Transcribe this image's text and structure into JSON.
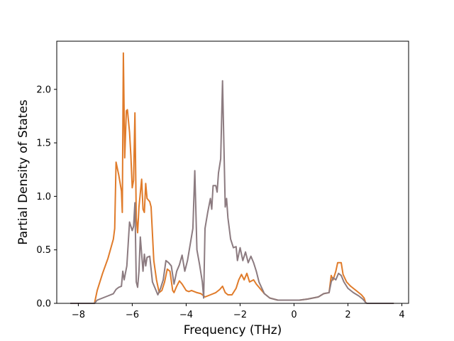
{
  "chart_data": {
    "type": "line",
    "title": "",
    "xlabel": "Frequency (THz)",
    "ylabel": "Partial Density of States",
    "xlim": [
      -8.8,
      4.25
    ],
    "ylim": [
      0,
      2.45
    ],
    "xticks": [
      -8,
      -6,
      -4,
      -2,
      0,
      2,
      4
    ],
    "xtick_labels": [
      "−8",
      "−6",
      "−4",
      "−2",
      "0",
      "2",
      "4"
    ],
    "yticks": [
      0.0,
      0.5,
      1.0,
      1.5,
      2.0
    ],
    "ytick_labels": [
      "0.0",
      "0.5",
      "1.0",
      "1.5",
      "2.0"
    ],
    "grid": false,
    "legend": "none",
    "series": [
      {
        "color": "#e07b2a",
        "points": [
          [
            -8.3,
            0.0
          ],
          [
            -7.4,
            0.0
          ],
          [
            -7.3,
            0.12
          ],
          [
            -7.1,
            0.28
          ],
          [
            -6.9,
            0.42
          ],
          [
            -6.7,
            0.6
          ],
          [
            -6.65,
            0.7
          ],
          [
            -6.6,
            1.32
          ],
          [
            -6.5,
            1.2
          ],
          [
            -6.4,
            1.05
          ],
          [
            -6.37,
            0.85
          ],
          [
            -6.33,
            2.34
          ],
          [
            -6.28,
            1.36
          ],
          [
            -6.22,
            1.8
          ],
          [
            -6.18,
            1.81
          ],
          [
            -6.1,
            1.6
          ],
          [
            -6.05,
            1.38
          ],
          [
            -6.0,
            1.08
          ],
          [
            -5.95,
            1.15
          ],
          [
            -5.9,
            1.78
          ],
          [
            -5.85,
            0.8
          ],
          [
            -5.8,
            0.66
          ],
          [
            -5.75,
            0.9
          ],
          [
            -5.65,
            1.16
          ],
          [
            -5.6,
            0.88
          ],
          [
            -5.55,
            0.85
          ],
          [
            -5.5,
            1.12
          ],
          [
            -5.45,
            0.98
          ],
          [
            -5.35,
            0.95
          ],
          [
            -5.3,
            0.9
          ],
          [
            -5.2,
            0.4
          ],
          [
            -5.1,
            0.22
          ],
          [
            -5.0,
            0.1
          ],
          [
            -4.9,
            0.12
          ],
          [
            -4.8,
            0.2
          ],
          [
            -4.7,
            0.32
          ],
          [
            -4.6,
            0.3
          ],
          [
            -4.5,
            0.12
          ],
          [
            -4.45,
            0.1
          ],
          [
            -4.35,
            0.16
          ],
          [
            -4.25,
            0.21
          ],
          [
            -4.15,
            0.18
          ],
          [
            -4.0,
            0.12
          ],
          [
            -3.9,
            0.11
          ],
          [
            -3.8,
            0.12
          ],
          [
            -3.6,
            0.1
          ],
          [
            -3.45,
            0.09
          ],
          [
            -3.3,
            0.06
          ],
          [
            -3.1,
            0.08
          ],
          [
            -2.9,
            0.1
          ],
          [
            -2.75,
            0.13
          ],
          [
            -2.65,
            0.16
          ],
          [
            -2.55,
            0.1
          ],
          [
            -2.45,
            0.08
          ],
          [
            -2.3,
            0.08
          ],
          [
            -2.15,
            0.14
          ],
          [
            -2.05,
            0.22
          ],
          [
            -1.95,
            0.27
          ],
          [
            -1.85,
            0.22
          ],
          [
            -1.75,
            0.28
          ],
          [
            -1.65,
            0.2
          ],
          [
            -1.5,
            0.22
          ],
          [
            -1.4,
            0.18
          ],
          [
            -1.3,
            0.15
          ],
          [
            -1.1,
            0.09
          ],
          [
            -0.9,
            0.05
          ],
          [
            -0.6,
            0.03
          ],
          [
            -0.2,
            0.03
          ],
          [
            0.2,
            0.03
          ],
          [
            0.5,
            0.04
          ],
          [
            0.9,
            0.06
          ],
          [
            1.1,
            0.09
          ],
          [
            1.3,
            0.1
          ],
          [
            1.38,
            0.26
          ],
          [
            1.45,
            0.22
          ],
          [
            1.55,
            0.3
          ],
          [
            1.62,
            0.38
          ],
          [
            1.75,
            0.38
          ],
          [
            1.82,
            0.27
          ],
          [
            1.95,
            0.2
          ],
          [
            2.1,
            0.16
          ],
          [
            2.3,
            0.12
          ],
          [
            2.5,
            0.08
          ],
          [
            2.6,
            0.05
          ],
          [
            2.65,
            0.01
          ],
          [
            2.7,
            0.0
          ],
          [
            3.7,
            0.0
          ]
        ]
      },
      {
        "color": "#8c7b80",
        "points": [
          [
            -8.3,
            0.0
          ],
          [
            -7.4,
            0.0
          ],
          [
            -7.3,
            0.03
          ],
          [
            -7.1,
            0.05
          ],
          [
            -6.9,
            0.07
          ],
          [
            -6.7,
            0.09
          ],
          [
            -6.6,
            0.13
          ],
          [
            -6.5,
            0.15
          ],
          [
            -6.4,
            0.16
          ],
          [
            -6.35,
            0.3
          ],
          [
            -6.3,
            0.22
          ],
          [
            -6.2,
            0.35
          ],
          [
            -6.1,
            0.76
          ],
          [
            -6.0,
            0.68
          ],
          [
            -5.95,
            0.72
          ],
          [
            -5.9,
            0.94
          ],
          [
            -5.85,
            0.2
          ],
          [
            -5.8,
            0.15
          ],
          [
            -5.75,
            0.3
          ],
          [
            -5.7,
            0.62
          ],
          [
            -5.6,
            0.3
          ],
          [
            -5.55,
            0.46
          ],
          [
            -5.5,
            0.35
          ],
          [
            -5.45,
            0.43
          ],
          [
            -5.35,
            0.44
          ],
          [
            -5.25,
            0.2
          ],
          [
            -5.15,
            0.14
          ],
          [
            -5.05,
            0.08
          ],
          [
            -4.95,
            0.14
          ],
          [
            -4.85,
            0.22
          ],
          [
            -4.75,
            0.4
          ],
          [
            -4.65,
            0.38
          ],
          [
            -4.55,
            0.35
          ],
          [
            -4.45,
            0.18
          ],
          [
            -4.35,
            0.3
          ],
          [
            -4.25,
            0.36
          ],
          [
            -4.15,
            0.45
          ],
          [
            -4.05,
            0.3
          ],
          [
            -3.95,
            0.4
          ],
          [
            -3.85,
            0.55
          ],
          [
            -3.75,
            0.7
          ],
          [
            -3.68,
            1.24
          ],
          [
            -3.6,
            0.5
          ],
          [
            -3.5,
            0.36
          ],
          [
            -3.4,
            0.2
          ],
          [
            -3.35,
            0.05
          ],
          [
            -3.3,
            0.7
          ],
          [
            -3.2,
            0.85
          ],
          [
            -3.1,
            0.98
          ],
          [
            -3.05,
            0.88
          ],
          [
            -3.0,
            1.1
          ],
          [
            -2.9,
            1.1
          ],
          [
            -2.85,
            1.04
          ],
          [
            -2.8,
            1.22
          ],
          [
            -2.72,
            1.35
          ],
          [
            -2.65,
            2.08
          ],
          [
            -2.55,
            0.9
          ],
          [
            -2.5,
            0.98
          ],
          [
            -2.45,
            0.8
          ],
          [
            -2.35,
            0.6
          ],
          [
            -2.25,
            0.52
          ],
          [
            -2.15,
            0.53
          ],
          [
            -2.1,
            0.4
          ],
          [
            -2.0,
            0.52
          ],
          [
            -1.9,
            0.4
          ],
          [
            -1.8,
            0.48
          ],
          [
            -1.7,
            0.38
          ],
          [
            -1.6,
            0.44
          ],
          [
            -1.5,
            0.38
          ],
          [
            -1.4,
            0.3
          ],
          [
            -1.3,
            0.2
          ],
          [
            -1.1,
            0.09
          ],
          [
            -0.9,
            0.05
          ],
          [
            -0.6,
            0.03
          ],
          [
            -0.2,
            0.03
          ],
          [
            0.2,
            0.03
          ],
          [
            0.5,
            0.04
          ],
          [
            0.9,
            0.06
          ],
          [
            1.1,
            0.09
          ],
          [
            1.3,
            0.1
          ],
          [
            1.38,
            0.2
          ],
          [
            1.45,
            0.24
          ],
          [
            1.55,
            0.22
          ],
          [
            1.65,
            0.28
          ],
          [
            1.75,
            0.26
          ],
          [
            1.85,
            0.2
          ],
          [
            2.0,
            0.14
          ],
          [
            2.2,
            0.1
          ],
          [
            2.4,
            0.07
          ],
          [
            2.55,
            0.04
          ],
          [
            2.65,
            0.01
          ],
          [
            2.7,
            0.0
          ],
          [
            3.7,
            0.0
          ]
        ]
      }
    ]
  }
}
